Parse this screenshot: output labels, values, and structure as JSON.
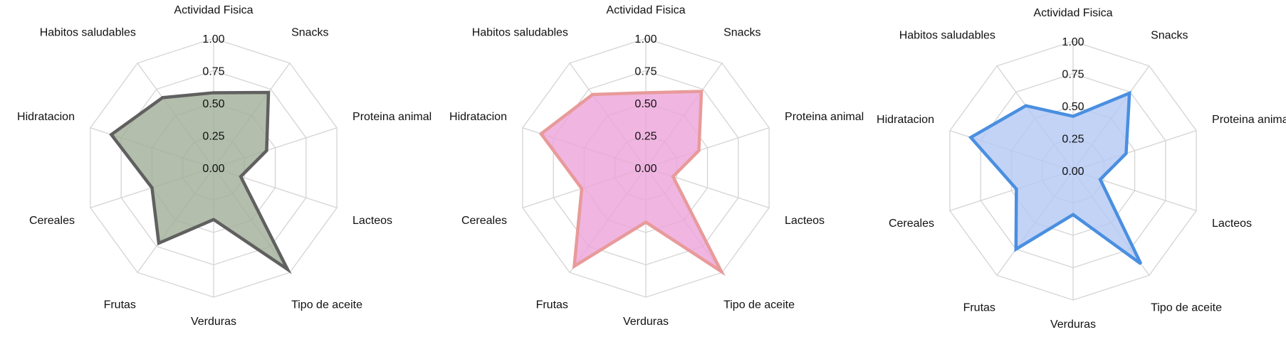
{
  "chart_data": [
    {
      "type": "radar",
      "categories": [
        "Actividad Fisica",
        "Snacks",
        "Proteina animal",
        "Lacteos",
        "Tipo de aceite",
        "Verduras",
        "Frutas",
        "Cereales",
        "Hidratacion",
        "Habitos saludables"
      ],
      "values": [
        0.58,
        0.72,
        0.43,
        0.22,
        0.97,
        0.4,
        0.72,
        0.5,
        0.83,
        0.67
      ],
      "rlim": [
        0,
        1
      ],
      "rticks": [
        "0.00",
        "0.25",
        "0.50",
        "0.75",
        "1.00"
      ],
      "grid": true,
      "colors": {
        "line": "#606060",
        "fill": "#a2b09a",
        "grid": "#d4d4d4"
      }
    },
    {
      "type": "radar",
      "categories": [
        "Actividad Fisica",
        "Snacks",
        "Proteina animal",
        "Lacteos",
        "Tipo de aceite",
        "Verduras",
        "Frutas",
        "Cereales",
        "Hidratacion",
        "Habitos saludables"
      ],
      "values": [
        0.58,
        0.73,
        0.43,
        0.22,
        0.99,
        0.42,
        0.94,
        0.52,
        0.85,
        0.7
      ],
      "rlim": [
        0,
        1
      ],
      "rticks": [
        "0.00",
        "0.25",
        "0.50",
        "0.75",
        "1.00"
      ],
      "grid": true,
      "colors": {
        "line": "#e89a9a",
        "fill": "#eda6db",
        "grid": "#d4d4d4"
      }
    },
    {
      "type": "radar",
      "categories": [
        "Actividad Fisica",
        "Snacks",
        "Proteina animal",
        "Lacteos",
        "Tipo de aceite",
        "Verduras",
        "Frutas",
        "Cereales",
        "Hidratacion",
        "Habitos saludables"
      ],
      "values": [
        0.42,
        0.74,
        0.43,
        0.22,
        0.89,
        0.34,
        0.75,
        0.46,
        0.83,
        0.62
      ],
      "rlim": [
        0,
        1
      ],
      "rticks": [
        "0.00",
        "0.25",
        "0.50",
        "0.75",
        "1.00"
      ],
      "grid": true,
      "colors": {
        "line": "#4a8fe0",
        "fill": "#b6c9f4",
        "grid": "#d4d4d4"
      }
    }
  ]
}
